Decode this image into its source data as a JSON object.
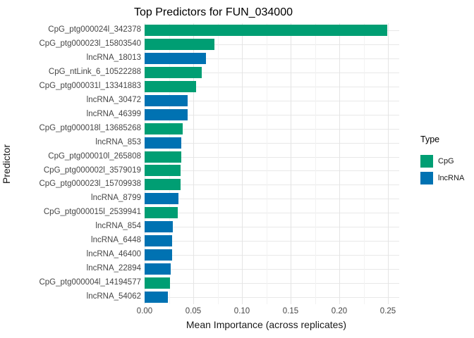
{
  "chart_data": {
    "type": "bar",
    "orientation": "horizontal",
    "title": "Top Predictors for FUN_034000",
    "xlabel": "Mean Importance (across replicates)",
    "ylabel": "Predictor",
    "xlim": [
      0,
      0.2615
    ],
    "x_ticks": [
      0,
      0.05,
      0.1,
      0.15,
      0.2,
      0.25
    ],
    "x_tick_labels": [
      "0.00",
      "0.05",
      "0.10",
      "0.15",
      "0.20",
      "0.25"
    ],
    "x_minor_ticks": [
      0.025,
      0.075,
      0.125,
      0.175,
      0.225
    ],
    "grid": true,
    "colors": {
      "CpG": "#009E73",
      "lncRNA": "#0072B2"
    },
    "legend": {
      "title": "Type",
      "position": "right",
      "entries": [
        {
          "label": "CpG",
          "color": "#009E73"
        },
        {
          "label": "lncRNA",
          "color": "#0072B2"
        }
      ]
    },
    "bars": [
      {
        "label": "CpG_ptg000024l_342378",
        "value": 0.249,
        "type": "CpG"
      },
      {
        "label": "CpG_ptg000023l_15803540",
        "value": 0.072,
        "type": "CpG"
      },
      {
        "label": "lncRNA_18013",
        "value": 0.063,
        "type": "lncRNA"
      },
      {
        "label": "CpG_ntLink_6_10522288",
        "value": 0.059,
        "type": "CpG"
      },
      {
        "label": "CpG_ptg000031l_13341883",
        "value": 0.053,
        "type": "CpG"
      },
      {
        "label": "lncRNA_30472",
        "value": 0.044,
        "type": "lncRNA"
      },
      {
        "label": "lncRNA_46399",
        "value": 0.044,
        "type": "lncRNA"
      },
      {
        "label": "CpG_ptg000018l_13685268",
        "value": 0.039,
        "type": "CpG"
      },
      {
        "label": "lncRNA_853",
        "value": 0.038,
        "type": "lncRNA"
      },
      {
        "label": "CpG_ptg000010l_265808",
        "value": 0.038,
        "type": "CpG"
      },
      {
        "label": "CpG_ptg000002l_3579019",
        "value": 0.037,
        "type": "CpG"
      },
      {
        "label": "CpG_ptg000023l_15709938",
        "value": 0.037,
        "type": "CpG"
      },
      {
        "label": "lncRNA_8799",
        "value": 0.035,
        "type": "lncRNA"
      },
      {
        "label": "CpG_ptg000015l_2539941",
        "value": 0.034,
        "type": "CpG"
      },
      {
        "label": "lncRNA_854",
        "value": 0.029,
        "type": "lncRNA"
      },
      {
        "label": "lncRNA_6448",
        "value": 0.028,
        "type": "lncRNA"
      },
      {
        "label": "lncRNA_46400",
        "value": 0.028,
        "type": "lncRNA"
      },
      {
        "label": "lncRNA_22894",
        "value": 0.027,
        "type": "lncRNA"
      },
      {
        "label": "CpG_ptg000004l_14194577",
        "value": 0.026,
        "type": "CpG"
      },
      {
        "label": "lncRNA_54062",
        "value": 0.024,
        "type": "lncRNA"
      }
    ]
  }
}
